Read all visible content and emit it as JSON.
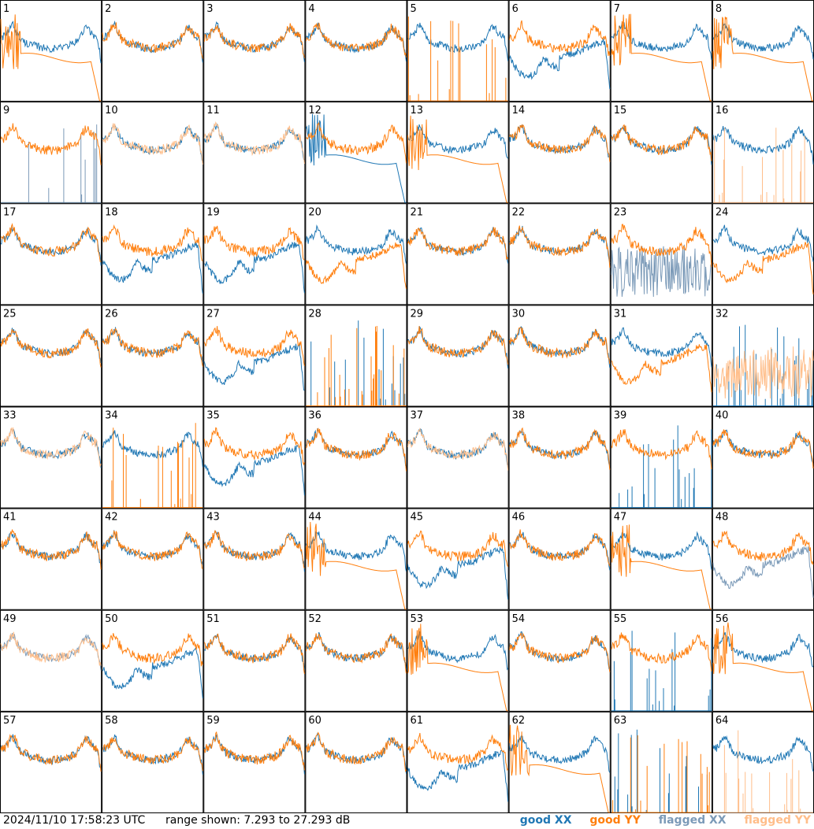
{
  "chart_data": {
    "type": "line",
    "panel_count": 64,
    "grid_columns": 8,
    "panel_labels": [
      "1",
      "2",
      "3",
      "4",
      "5",
      "6",
      "7",
      "8",
      "9",
      "10",
      "11",
      "12",
      "13",
      "14",
      "15",
      "16",
      "17",
      "18",
      "19",
      "20",
      "21",
      "22",
      "23",
      "24",
      "25",
      "26",
      "27",
      "28",
      "29",
      "30",
      "31",
      "32",
      "33",
      "34",
      "35",
      "36",
      "37",
      "38",
      "39",
      "40",
      "41",
      "42",
      "43",
      "44",
      "45",
      "46",
      "47",
      "48",
      "49",
      "50",
      "51",
      "52",
      "53",
      "54",
      "55",
      "56",
      "57",
      "58",
      "59",
      "60",
      "61",
      "62",
      "63",
      "64"
    ],
    "ylim_db": [
      7.293,
      27.293
    ],
    "x": "frequency channel (unlabeled)",
    "series_styles": {
      "good_xx": "#1f77b4",
      "good_yy": "#ff7f0e",
      "flagged_xx": "#7b9ab8",
      "flagged_yy": "#ffbe8a"
    },
    "panels": {
      "1": {
        "xx": "bath",
        "yy": "low"
      },
      "2": {
        "xx": "bath",
        "yy": "bath"
      },
      "3": {
        "xx": "bath",
        "yy": "bath"
      },
      "4": {
        "xx": "bath",
        "yy": "bath"
      },
      "5": {
        "xx": "bath",
        "yy": "spikes"
      },
      "6": {
        "xx": "dip",
        "yy": "bath"
      },
      "7": {
        "xx": "bath",
        "yy": "low"
      },
      "8": {
        "xx": "bath",
        "yy": "low"
      },
      "9": {
        "xx": "spikes",
        "yy": "bath",
        "flagged": "xx"
      },
      "10": {
        "xx": "bath",
        "yy": "bath",
        "flagged": "yy"
      },
      "11": {
        "xx": "bath",
        "yy": "bath",
        "flagged": "yy"
      },
      "12": {
        "xx": "low",
        "yy": "bath"
      },
      "13": {
        "xx": "bath",
        "yy": "low"
      },
      "14": {
        "xx": "bath",
        "yy": "bath"
      },
      "15": {
        "xx": "bath",
        "yy": "bath"
      },
      "16": {
        "xx": "bath",
        "yy": "spikes",
        "flagged": "yy"
      },
      "17": {
        "xx": "bath",
        "yy": "bath"
      },
      "18": {
        "xx": "dip",
        "yy": "bath"
      },
      "19": {
        "xx": "dip",
        "yy": "bath"
      },
      "20": {
        "xx": "bath",
        "yy": "dip"
      },
      "21": {
        "xx": "bath",
        "yy": "bath"
      },
      "22": {
        "xx": "bath",
        "yy": "bath"
      },
      "23": {
        "xx": "noise",
        "yy": "bath",
        "flagged": "xx"
      },
      "24": {
        "xx": "bath",
        "yy": "dip"
      },
      "25": {
        "xx": "bath",
        "yy": "bath"
      },
      "26": {
        "xx": "bath",
        "yy": "bath"
      },
      "27": {
        "xx": "dip",
        "yy": "bath"
      },
      "28": {
        "xx": "spikes",
        "yy": "spikes"
      },
      "29": {
        "xx": "bath",
        "yy": "bath"
      },
      "30": {
        "xx": "bath",
        "yy": "bath"
      },
      "31": {
        "xx": "bath",
        "yy": "dip"
      },
      "32": {
        "xx": "spikes",
        "yy": "noise",
        "flagged": "yy"
      },
      "33": {
        "xx": "bath",
        "yy": "bath",
        "flagged": "yy"
      },
      "34": {
        "xx": "bath",
        "yy": "spikes"
      },
      "35": {
        "xx": "dip",
        "yy": "bath"
      },
      "36": {
        "xx": "bath",
        "yy": "bath"
      },
      "37": {
        "xx": "bath",
        "yy": "bath",
        "flagged": "yy"
      },
      "38": {
        "xx": "bath",
        "yy": "bath"
      },
      "39": {
        "xx": "spikes",
        "yy": "bath"
      },
      "40": {
        "xx": "bath",
        "yy": "bath"
      },
      "41": {
        "xx": "bath",
        "yy": "bath"
      },
      "42": {
        "xx": "bath",
        "yy": "bath"
      },
      "43": {
        "xx": "bath",
        "yy": "bath"
      },
      "44": {
        "xx": "bath",
        "yy": "low"
      },
      "45": {
        "xx": "dip",
        "yy": "bath"
      },
      "46": {
        "xx": "bath",
        "yy": "bath"
      },
      "47": {
        "xx": "bath",
        "yy": "low"
      },
      "48": {
        "xx": "dip",
        "yy": "bath",
        "flagged": "xx"
      },
      "49": {
        "xx": "bath",
        "yy": "bath",
        "flagged": "both"
      },
      "50": {
        "xx": "dip",
        "yy": "bath"
      },
      "51": {
        "xx": "bath",
        "yy": "bath"
      },
      "52": {
        "xx": "bath",
        "yy": "bath"
      },
      "53": {
        "xx": "bath",
        "yy": "low"
      },
      "54": {
        "xx": "bath",
        "yy": "bath"
      },
      "55": {
        "xx": "spikes",
        "yy": "bath"
      },
      "56": {
        "xx": "bath",
        "yy": "low"
      },
      "57": {
        "xx": "bath",
        "yy": "bath"
      },
      "58": {
        "xx": "bath",
        "yy": "bath"
      },
      "59": {
        "xx": "bath",
        "yy": "bath"
      },
      "60": {
        "xx": "bath",
        "yy": "bath"
      },
      "61": {
        "xx": "dip",
        "yy": "bath"
      },
      "62": {
        "xx": "bath",
        "yy": "low"
      },
      "63": {
        "xx": "spikes",
        "yy": "spikes"
      },
      "64": {
        "xx": "bath",
        "yy": "spikes",
        "flagged": "yy"
      }
    }
  },
  "footer": {
    "timestamp": "2024/11/10 17:58:23 UTC",
    "range_text": "range shown: 7.293 to 27.293 dB",
    "legend": [
      {
        "label": "good XX",
        "color": "#1f77b4"
      },
      {
        "label": "good YY",
        "color": "#ff7f0e"
      },
      {
        "label": "flagged XX",
        "color": "#7b9ab8"
      },
      {
        "label": "flagged YY",
        "color": "#ffbe8a"
      }
    ]
  }
}
